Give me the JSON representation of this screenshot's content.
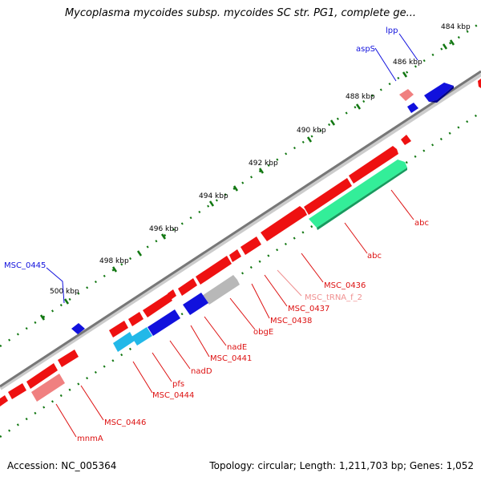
{
  "title": "Mycoplasma mycoides subsp. mycoides SC str. PG1, complete ge...",
  "footer": {
    "accession": "Accession: NC_005364",
    "summary": "Topology: circular; Length: 1,211,703 bp; Genes: 1,052"
  },
  "colors": {
    "forward": "#ee1111",
    "reverse": "#1111dd",
    "rna": "#f08080",
    "cyan": "#22b8e8",
    "green": "#33ee99",
    "gray": "#b8b8b8",
    "backbone": "#777777",
    "ruler": "#117711"
  },
  "ticks": [
    "484 kbp",
    "486 kbp",
    "488 kbp",
    "490 kbp",
    "492 kbp",
    "494 kbp",
    "496 kbp",
    "498 kbp",
    "500 kbp"
  ],
  "genes": [
    {
      "name": "lpp",
      "color": "#1111dd"
    },
    {
      "name": "aspS",
      "color": "#1111dd"
    },
    {
      "name": "MSC_0445",
      "color": "#1111dd"
    },
    {
      "name": "abc",
      "color": "#dd1111"
    },
    {
      "name": "abc",
      "color": "#dd1111"
    },
    {
      "name": "MSC_0436",
      "color": "#dd1111"
    },
    {
      "name": "MSC_tRNA_f_2",
      "color": "#f09090"
    },
    {
      "name": "MSC_0437",
      "color": "#dd1111"
    },
    {
      "name": "MSC_0438",
      "color": "#dd1111"
    },
    {
      "name": "obgE",
      "color": "#dd1111"
    },
    {
      "name": "nadE",
      "color": "#dd1111"
    },
    {
      "name": "MSC_0441",
      "color": "#dd1111"
    },
    {
      "name": "nadD",
      "color": "#dd1111"
    },
    {
      "name": "pfs",
      "color": "#dd1111"
    },
    {
      "name": "MSC_0444",
      "color": "#dd1111"
    },
    {
      "name": "MSC_0446",
      "color": "#dd1111"
    },
    {
      "name": "mnmA",
      "color": "#dd1111"
    }
  ]
}
